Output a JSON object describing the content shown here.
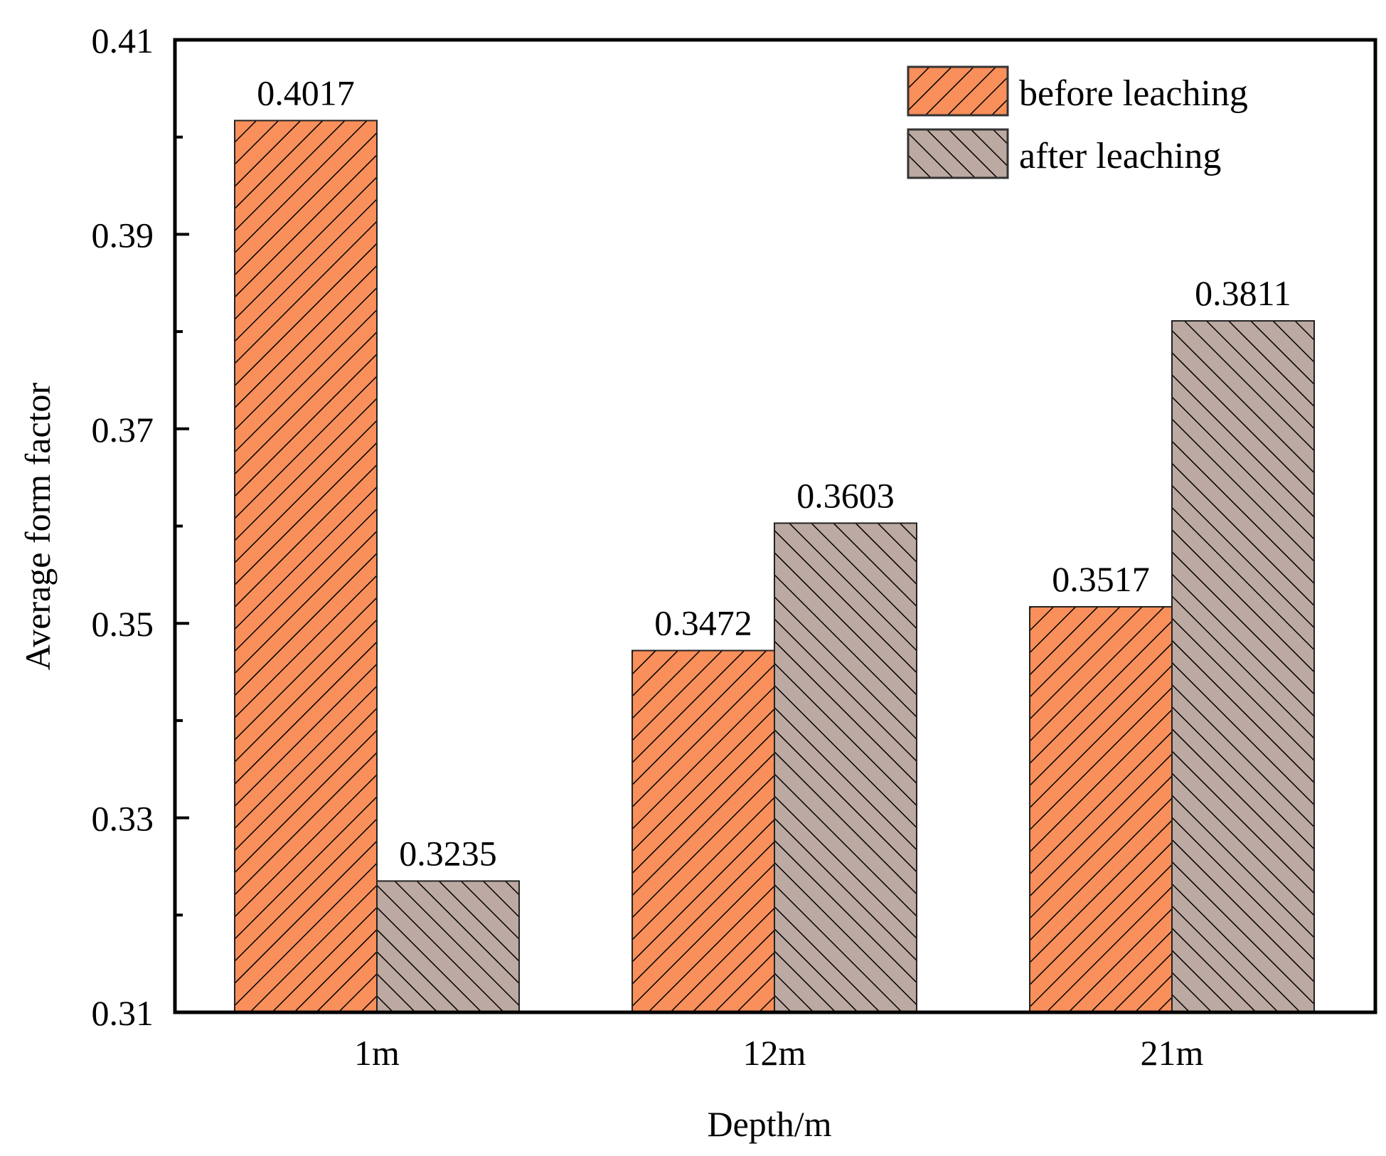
{
  "chart_data": {
    "type": "bar",
    "title": "",
    "xlabel": "Depth/m",
    "ylabel": "Average form factor",
    "categories": [
      "1m",
      "12m",
      "21m"
    ],
    "series": [
      {
        "name": "before leaching",
        "values": [
          0.4017,
          0.3472,
          0.3517
        ],
        "value_labels": [
          "0.4017",
          "0.3472",
          "0.3517"
        ],
        "color": "#F98F5A",
        "hatch": "forward-diagonal"
      },
      {
        "name": "after leaching",
        "values": [
          0.3235,
          0.3603,
          0.3811
        ],
        "value_labels": [
          "0.3235",
          "0.3603",
          "0.3811"
        ],
        "color": "#BCA9A1",
        "hatch": "back-diagonal"
      }
    ],
    "ylim": [
      0.31,
      0.41
    ],
    "yticks": [
      0.31,
      0.33,
      0.35,
      0.37,
      0.39,
      0.41
    ],
    "ytick_labels": [
      "0.31",
      "0.33",
      "0.35",
      "0.37",
      "0.39",
      "0.41"
    ],
    "grid": false,
    "legend_position": "top-right"
  }
}
